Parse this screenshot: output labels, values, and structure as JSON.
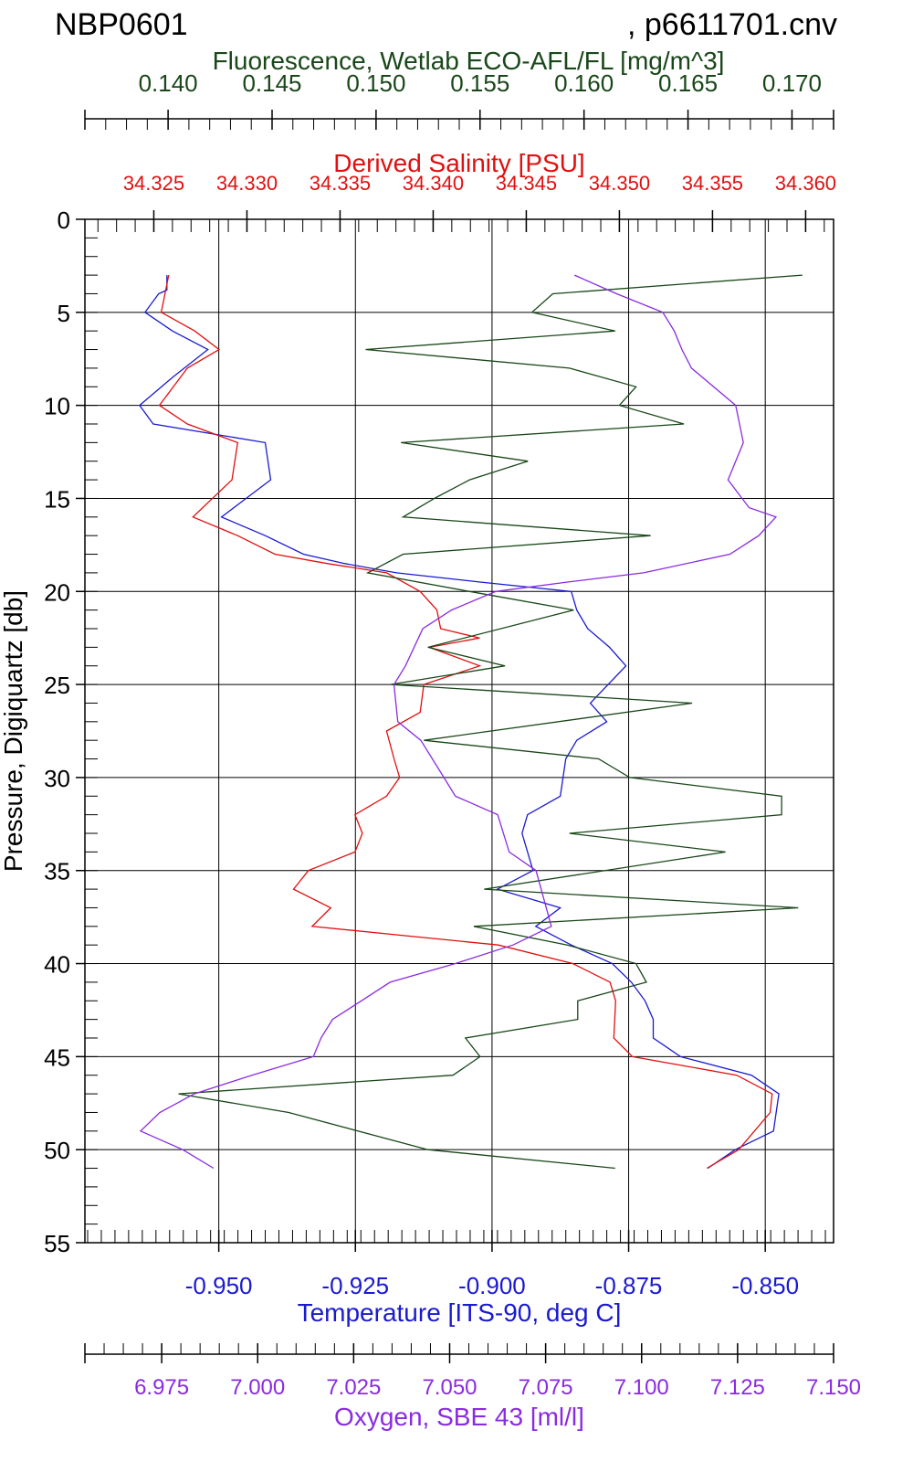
{
  "header": {
    "title_left": "NBP0601",
    "title_right": ", p6611701.cnv"
  },
  "chart_data": {
    "type": "line",
    "y_axis": {
      "label": "Pressure, Digiquartz [db]",
      "range": [
        0,
        55
      ],
      "ticks": [
        0,
        5,
        10,
        15,
        20,
        25,
        30,
        35,
        40,
        45,
        50,
        55
      ],
      "inverted": true
    },
    "x_axes": {
      "fluorescence": {
        "label": "Fluorescence, Wetlab ECO-AFL/FL [mg/m^3]",
        "position": "top",
        "range": [
          0.136,
          0.172
        ],
        "ticks": [
          "0.140",
          "0.145",
          "0.150",
          "0.155",
          "0.160",
          "0.165",
          "0.170"
        ],
        "color": "#194719"
      },
      "salinity": {
        "label": "Derived Salinity [PSU]",
        "position": "top",
        "range": [
          34.3213,
          34.3615
        ],
        "ticks": [
          "34.325",
          "34.330",
          "34.335",
          "34.340",
          "34.345",
          "34.350",
          "34.355",
          "34.360"
        ],
        "color": "#e01010"
      },
      "temperature": {
        "label": "Temperature [ITS-90, deg C]",
        "position": "bottom",
        "range": [
          -0.9745,
          -0.8375
        ],
        "ticks": [
          "-0.950",
          "-0.925",
          "-0.900",
          "-0.875",
          "-0.850"
        ],
        "color": "#1a1ad0"
      },
      "oxygen": {
        "label": "Oxygen, SBE 43 [ml/l]",
        "position": "bottom",
        "range": [
          6.955,
          7.15
        ],
        "ticks": [
          "6.975",
          "7.000",
          "7.025",
          "7.050",
          "7.075",
          "7.100",
          "7.125",
          "7.150"
        ],
        "color": "#8a2be2"
      }
    },
    "grid": true,
    "series": [
      {
        "name": "Temperature [ITS-90, deg C]",
        "axis": "temperature",
        "color": "#1a1ad0",
        "points": [
          [
            -0.9595,
            3
          ],
          [
            -0.9595,
            3.8
          ],
          [
            -0.961,
            4
          ],
          [
            -0.9635,
            5
          ],
          [
            -0.9585,
            6
          ],
          [
            -0.952,
            7
          ],
          [
            -0.9585,
            8.5
          ],
          [
            -0.9645,
            10
          ],
          [
            -0.962,
            11
          ],
          [
            -0.9415,
            12
          ],
          [
            -0.9405,
            14
          ],
          [
            -0.9495,
            16
          ],
          [
            -0.9415,
            17
          ],
          [
            -0.9345,
            18
          ],
          [
            -0.927,
            18.5
          ],
          [
            -0.9175,
            19
          ],
          [
            -0.902,
            19.5
          ],
          [
            -0.8855,
            20
          ],
          [
            -0.8845,
            21
          ],
          [
            -0.8825,
            22
          ],
          [
            -0.8785,
            23
          ],
          [
            -0.8755,
            24
          ],
          [
            -0.882,
            26
          ],
          [
            -0.879,
            27
          ],
          [
            -0.8845,
            28
          ],
          [
            -0.8865,
            29
          ],
          [
            -0.8875,
            31
          ],
          [
            -0.8935,
            32
          ],
          [
            -0.8945,
            33
          ],
          [
            -0.8925,
            35
          ],
          [
            -0.899,
            36
          ],
          [
            -0.8875,
            37
          ],
          [
            -0.892,
            38
          ],
          [
            -0.8855,
            39
          ],
          [
            -0.878,
            40
          ],
          [
            -0.8745,
            41
          ],
          [
            -0.872,
            42
          ],
          [
            -0.8705,
            43
          ],
          [
            -0.8705,
            44
          ],
          [
            -0.8655,
            45
          ],
          [
            -0.8525,
            46
          ],
          [
            -0.8475,
            47
          ],
          [
            -0.8485,
            49
          ],
          [
            -0.8555,
            50
          ],
          [
            -0.8605,
            51
          ]
        ]
      },
      {
        "name": "Derived Salinity [PSU]",
        "axis": "salinity",
        "color": "#e01010",
        "points": [
          [
            34.3258,
            3
          ],
          [
            34.3256,
            4
          ],
          [
            34.3254,
            5
          ],
          [
            34.3272,
            6
          ],
          [
            34.3285,
            7
          ],
          [
            34.3268,
            8
          ],
          [
            34.3253,
            10
          ],
          [
            34.3268,
            11
          ],
          [
            34.3295,
            12
          ],
          [
            34.3292,
            14
          ],
          [
            34.3271,
            16
          ],
          [
            34.3295,
            17
          ],
          [
            34.3315,
            18
          ],
          [
            34.3343,
            18.5
          ],
          [
            34.3375,
            19
          ],
          [
            34.3393,
            20
          ],
          [
            34.3402,
            21
          ],
          [
            34.3404,
            22
          ],
          [
            34.3425,
            22.5
          ],
          [
            34.3398,
            23
          ],
          [
            34.3425,
            24
          ],
          [
            34.3395,
            25
          ],
          [
            34.3393,
            26.5
          ],
          [
            34.3375,
            27.5
          ],
          [
            34.3379,
            29
          ],
          [
            34.3382,
            30
          ],
          [
            34.3375,
            31
          ],
          [
            34.3358,
            32
          ],
          [
            34.3362,
            33
          ],
          [
            34.3358,
            34
          ],
          [
            34.3333,
            35
          ],
          [
            34.3325,
            36
          ],
          [
            34.3345,
            37
          ],
          [
            34.3335,
            38
          ],
          [
            34.3385,
            38.5
          ],
          [
            34.3435,
            39
          ],
          [
            34.3475,
            40
          ],
          [
            34.3495,
            41
          ],
          [
            34.3498,
            42
          ],
          [
            34.3497,
            44
          ],
          [
            34.3507,
            45
          ],
          [
            34.3563,
            46
          ],
          [
            34.3582,
            47
          ],
          [
            34.3581,
            48
          ],
          [
            34.3564,
            50
          ],
          [
            34.3547,
            51
          ]
        ]
      },
      {
        "name": "Fluorescence, Wetlab ECO-AFL/FL [mg/m^3]",
        "axis": "fluorescence",
        "color": "#194719",
        "points": [
          [
            0.1705,
            3
          ],
          [
            0.1585,
            4
          ],
          [
            0.1575,
            5
          ],
          [
            0.1615,
            6
          ],
          [
            0.1495,
            7
          ],
          [
            0.1593,
            8
          ],
          [
            0.1625,
            9
          ],
          [
            0.1617,
            10
          ],
          [
            0.1648,
            11
          ],
          [
            0.1512,
            12
          ],
          [
            0.1573,
            13
          ],
          [
            0.1545,
            14
          ],
          [
            0.1528,
            15
          ],
          [
            0.1513,
            16
          ],
          [
            0.1632,
            17
          ],
          [
            0.1513,
            18
          ],
          [
            0.1496,
            19
          ],
          [
            0.1545,
            20
          ],
          [
            0.1595,
            21
          ],
          [
            0.1525,
            23
          ],
          [
            0.1562,
            24
          ],
          [
            0.1507,
            25
          ],
          [
            0.1652,
            26
          ],
          [
            0.1523,
            28
          ],
          [
            0.1607,
            29
          ],
          [
            0.1622,
            30
          ],
          [
            0.1695,
            31
          ],
          [
            0.1695,
            32
          ],
          [
            0.1593,
            33
          ],
          [
            0.1668,
            34
          ],
          [
            0.1552,
            36
          ],
          [
            0.1703,
            37
          ],
          [
            0.1547,
            38
          ],
          [
            0.1592,
            39
          ],
          [
            0.1625,
            40
          ],
          [
            0.163,
            41
          ],
          [
            0.1597,
            42
          ],
          [
            0.1597,
            43
          ],
          [
            0.1543,
            44
          ],
          [
            0.155,
            45
          ],
          [
            0.1537,
            46
          ],
          [
            0.1405,
            47
          ],
          [
            0.1458,
            48
          ],
          [
            0.1525,
            50
          ],
          [
            0.1615,
            51
          ]
        ]
      },
      {
        "name": "Oxygen, SBE 43 [ml/l]",
        "axis": "oxygen",
        "color": "#8a2be2",
        "points": [
          [
            7.0825,
            3
          ],
          [
            7.0935,
            4
          ],
          [
            7.1055,
            5
          ],
          [
            7.1085,
            6
          ],
          [
            7.1105,
            7
          ],
          [
            7.113,
            8
          ],
          [
            7.1245,
            10
          ],
          [
            7.1265,
            12
          ],
          [
            7.1225,
            14
          ],
          [
            7.128,
            15.5
          ],
          [
            7.135,
            16
          ],
          [
            7.1305,
            17
          ],
          [
            7.123,
            18
          ],
          [
            7.1005,
            19
          ],
          [
            7.0805,
            19.5
          ],
          [
            7.062,
            20
          ],
          [
            7.0505,
            21
          ],
          [
            7.043,
            22
          ],
          [
            7.0385,
            24
          ],
          [
            7.0355,
            25
          ],
          [
            7.0365,
            27
          ],
          [
            7.0425,
            28
          ],
          [
            7.0485,
            30
          ],
          [
            7.0515,
            31
          ],
          [
            7.0625,
            32
          ],
          [
            7.0655,
            34
          ],
          [
            7.0725,
            35
          ],
          [
            7.0765,
            38
          ],
          [
            7.0665,
            39
          ],
          [
            7.0515,
            40
          ],
          [
            7.0345,
            41
          ],
          [
            7.027,
            42
          ],
          [
            7.0195,
            43
          ],
          [
            7.0165,
            44
          ],
          [
            7.0145,
            45
          ],
          [
            6.9985,
            46
          ],
          [
            6.9835,
            47
          ],
          [
            6.9745,
            48
          ],
          [
            6.9695,
            49
          ],
          [
            6.9805,
            50
          ],
          [
            6.9885,
            51
          ]
        ]
      }
    ]
  }
}
